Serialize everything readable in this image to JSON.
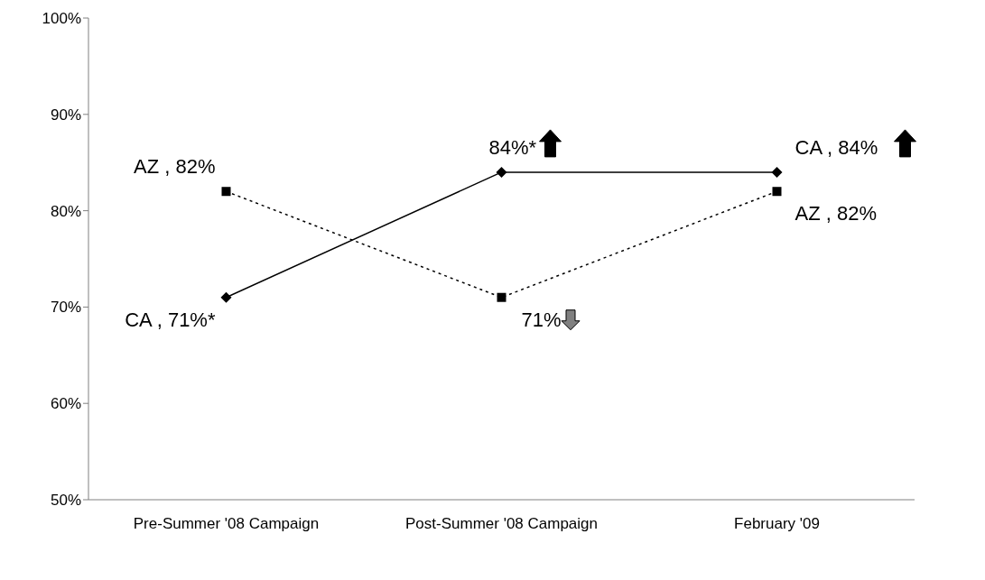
{
  "chart_data": {
    "type": "line",
    "categories": [
      "Pre-Summer '08 Campaign",
      "Post-Summer '08 Campaign",
      "February '09"
    ],
    "series": [
      {
        "color": "#000000",
        "values": [
          71,
          84,
          84
        ],
        "marker": "diamond",
        "line_style": "solid",
        "value_labels": [
          "CA , 71%*",
          "84%*",
          "CA , 84%"
        ]
      },
      {
        "color": "#000000",
        "values": [
          82,
          71,
          82
        ],
        "marker": "square",
        "line_style": "dotted",
        "value_labels": [
          "AZ , 82%",
          "71%",
          "AZ , 82%"
        ]
      }
    ],
    "ylim": [
      50,
      100
    ],
    "yticks": [
      {
        "value": 50,
        "label": "50%"
      },
      {
        "value": 60,
        "label": "60%"
      },
      {
        "value": 70,
        "label": "70%"
      },
      {
        "value": 80,
        "label": "80%"
      },
      {
        "value": 90,
        "label": "90%"
      },
      {
        "value": 100,
        "label": "100%"
      }
    ],
    "grid": false,
    "legend": false
  }
}
